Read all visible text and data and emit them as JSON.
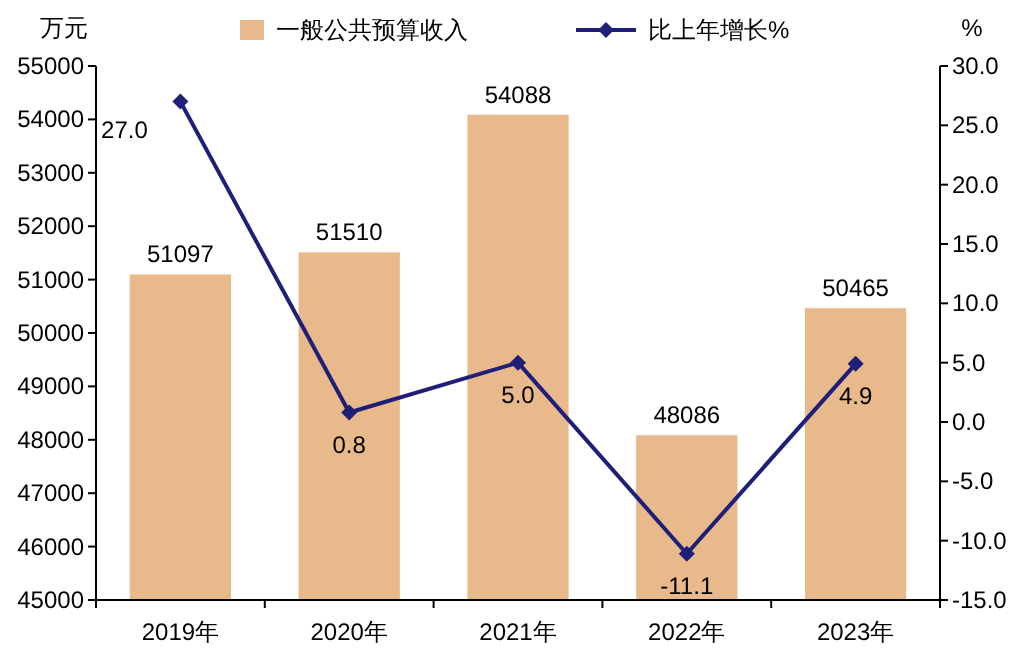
{
  "chart_data": {
    "type": "bar",
    "categories": [
      "2019年",
      "2020年",
      "2021年",
      "2022年",
      "2023年"
    ],
    "ylabel": "万元",
    "y2label": "%",
    "series": [
      {
        "name": "一般公共预算收入",
        "color": "#e8b98a",
        "values": [
          51097,
          51510,
          54088,
          48086,
          50465
        ]
      },
      {
        "name": "比上年增长%",
        "type": "line",
        "axis": "y2",
        "color": "#1f1f7a",
        "marker": "diamond",
        "values": [
          27.0,
          0.8,
          5.0,
          -11.1,
          4.9
        ],
        "value_labels": [
          "27.0",
          "0.8",
          "5.0",
          "-11.1",
          "4.9"
        ]
      }
    ],
    "data_labels": true,
    "ylim": [
      45000,
      55000
    ],
    "yticks": [
      45000,
      46000,
      47000,
      48000,
      49000,
      50000,
      51000,
      52000,
      53000,
      54000,
      55000
    ],
    "y2lim": [
      -15,
      30
    ],
    "y2ticks": [
      {
        "value": -15,
        "label": "-15.0"
      },
      {
        "value": -10,
        "label": "-10.0"
      },
      {
        "value": -5,
        "label": "-5.0"
      },
      {
        "value": 0,
        "label": "0.0"
      },
      {
        "value": 5,
        "label": "5.0"
      },
      {
        "value": 10,
        "label": "10.0"
      },
      {
        "value": 15,
        "label": "15.0"
      },
      {
        "value": 20,
        "label": "20.0"
      },
      {
        "value": 25,
        "label": "25.0"
      },
      {
        "value": 30,
        "label": "30.0"
      }
    ],
    "legend": "top",
    "grid": false
  }
}
